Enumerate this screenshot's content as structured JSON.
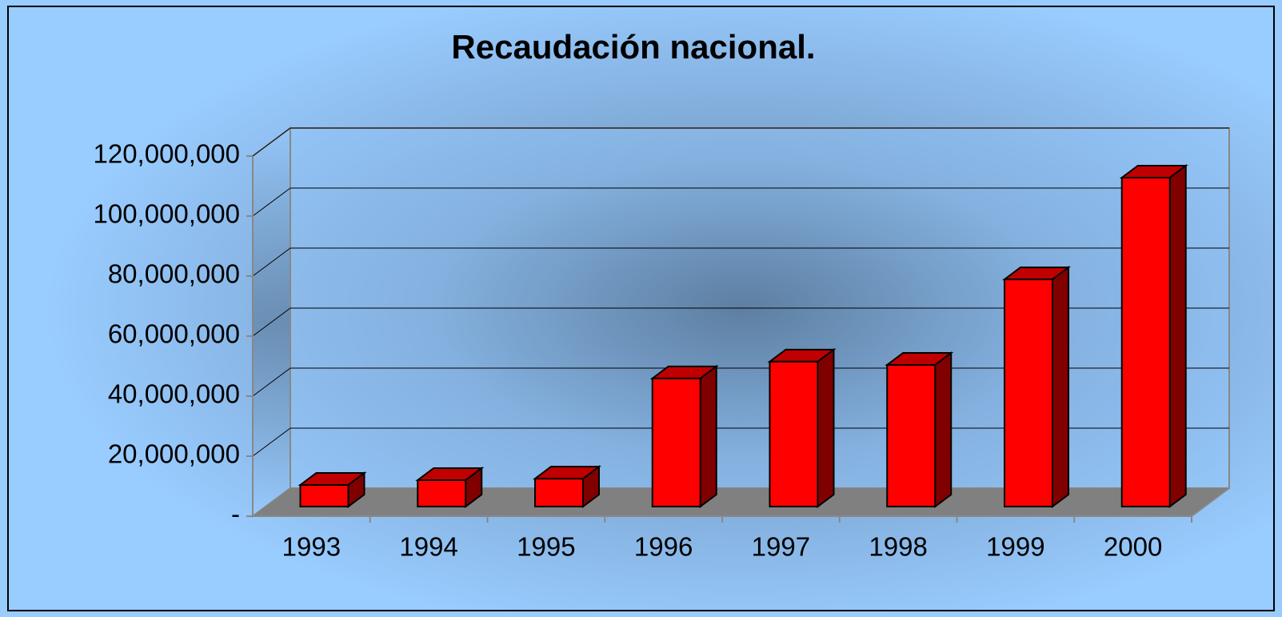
{
  "chart_data": {
    "type": "bar3d",
    "title": "Recaudación nacional.",
    "categories": [
      "1993",
      "1994",
      "1995",
      "1996",
      "1997",
      "1998",
      "1999",
      "2000"
    ],
    "values": [
      7200000,
      8800000,
      9300000,
      42700000,
      48300000,
      47200000,
      75700000,
      109600000
    ],
    "color": "#ff0000",
    "ylim": [
      0,
      120000000
    ],
    "yticks": [
      {
        "value": 0,
        "label": "-"
      },
      {
        "value": 20000000,
        "label": "20,000,000"
      },
      {
        "value": 40000000,
        "label": "40,000,000"
      },
      {
        "value": 60000000,
        "label": "60,000,000"
      },
      {
        "value": 80000000,
        "label": "80,000,000"
      },
      {
        "value": 100000000,
        "label": "100,000,000"
      },
      {
        "value": 120000000,
        "label": "120,000,000"
      }
    ],
    "grid": true
  }
}
